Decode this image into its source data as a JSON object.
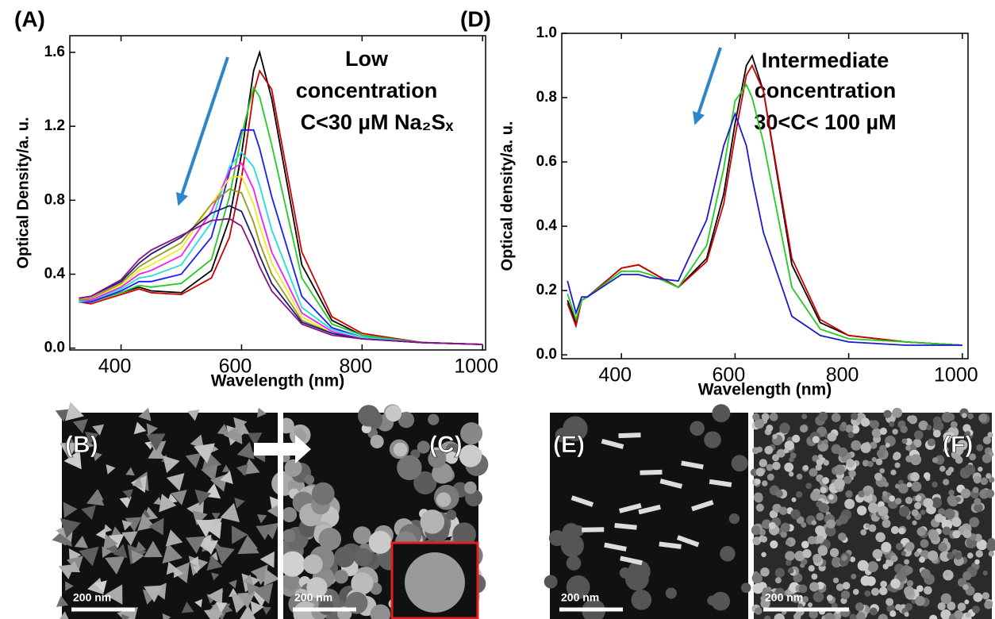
{
  "chart_data": [
    {
      "type": "line",
      "label": "(A)",
      "annotation": [
        "Low",
        "concentration",
        "C<30 µM  Na₂Sₓ"
      ],
      "xlabel": "Wavelength (nm)",
      "ylabel": "Optical Density/a. u.",
      "xlim": [
        315,
        1005
      ],
      "ylim": [
        -0.01,
        1.69
      ],
      "xticks": [
        400,
        600,
        800,
        1000
      ],
      "yticks": [
        {
          "value": 0,
          "label": "0.0"
        },
        0.4,
        0.8,
        1.2,
        1.6
      ],
      "x": [
        330,
        350,
        400,
        430,
        450,
        500,
        550,
        580,
        600,
        620,
        630,
        650,
        700,
        750,
        800,
        900,
        1000
      ],
      "series": [
        {
          "color": "#000000",
          "values": [
            0.26,
            0.25,
            0.3,
            0.33,
            0.31,
            0.3,
            0.42,
            0.7,
            1.05,
            1.5,
            1.6,
            1.35,
            0.45,
            0.15,
            0.07,
            0.03,
            0.02
          ]
        },
        {
          "color": "#cc0000",
          "values": [
            0.25,
            0.24,
            0.29,
            0.32,
            0.3,
            0.29,
            0.38,
            0.6,
            0.92,
            1.38,
            1.5,
            1.4,
            0.52,
            0.17,
            0.08,
            0.03,
            0.02
          ]
        },
        {
          "color": "#22cc22",
          "values": [
            0.25,
            0.25,
            0.3,
            0.34,
            0.33,
            0.35,
            0.48,
            0.82,
            1.15,
            1.41,
            1.36,
            1.1,
            0.38,
            0.13,
            0.07,
            0.03,
            0.02
          ]
        },
        {
          "color": "#1a1aff",
          "values": [
            0.25,
            0.25,
            0.31,
            0.36,
            0.36,
            0.4,
            0.6,
            0.95,
            1.18,
            1.18,
            1.08,
            0.82,
            0.28,
            0.11,
            0.06,
            0.03,
            0.02
          ]
        },
        {
          "color": "#22dddd",
          "values": [
            0.25,
            0.26,
            0.32,
            0.38,
            0.39,
            0.45,
            0.68,
            0.98,
            1.06,
            0.98,
            0.88,
            0.64,
            0.22,
            0.1,
            0.06,
            0.03,
            0.02
          ]
        },
        {
          "color": "#ee22ee",
          "values": [
            0.26,
            0.26,
            0.33,
            0.4,
            0.42,
            0.5,
            0.74,
            0.96,
            1.0,
            0.86,
            0.74,
            0.52,
            0.19,
            0.09,
            0.05,
            0.03,
            0.02
          ]
        },
        {
          "color": "#eeee22",
          "values": [
            0.26,
            0.27,
            0.34,
            0.42,
            0.45,
            0.54,
            0.78,
            0.92,
            0.93,
            0.78,
            0.66,
            0.46,
            0.17,
            0.08,
            0.05,
            0.03,
            0.02
          ]
        },
        {
          "color": "#999922",
          "values": [
            0.26,
            0.27,
            0.35,
            0.44,
            0.48,
            0.57,
            0.78,
            0.86,
            0.84,
            0.68,
            0.57,
            0.4,
            0.15,
            0.08,
            0.05,
            0.03,
            0.02
          ]
        },
        {
          "color": "#1a1a77",
          "values": [
            0.27,
            0.28,
            0.36,
            0.46,
            0.51,
            0.6,
            0.73,
            0.77,
            0.74,
            0.59,
            0.5,
            0.35,
            0.14,
            0.08,
            0.05,
            0.03,
            0.02
          ]
        },
        {
          "color": "#881188",
          "values": [
            0.27,
            0.28,
            0.37,
            0.48,
            0.53,
            0.61,
            0.69,
            0.7,
            0.66,
            0.52,
            0.44,
            0.31,
            0.13,
            0.07,
            0.05,
            0.03,
            0.02
          ]
        }
      ]
    },
    {
      "type": "line",
      "label": "(D)",
      "annotation": [
        "Intermediate",
        "concentration",
        "30<C< 100 µM"
      ],
      "xlabel": "Wavelength (nm)",
      "ylabel": "Optical density/a. u.",
      "xlim": [
        295,
        1010
      ],
      "ylim": [
        -0.012,
        1.0
      ],
      "xticks": [
        400,
        600,
        800,
        1000
      ],
      "yticks": [
        {
          "value": 0,
          "label": "0.0"
        },
        0.2,
        0.4,
        0.6,
        0.8,
        {
          "value": 1,
          "label": "1.0"
        }
      ],
      "x": [
        305,
        320,
        330,
        340,
        400,
        430,
        450,
        500,
        550,
        580,
        600,
        620,
        630,
        650,
        700,
        750,
        800,
        900,
        1000
      ],
      "series": [
        {
          "color": "#000000",
          "values": [
            0.17,
            0.1,
            0.17,
            0.18,
            0.27,
            0.28,
            0.26,
            0.21,
            0.3,
            0.5,
            0.72,
            0.9,
            0.93,
            0.82,
            0.28,
            0.1,
            0.06,
            0.04,
            0.03
          ]
        },
        {
          "color": "#cc0000",
          "values": [
            0.16,
            0.09,
            0.17,
            0.18,
            0.27,
            0.28,
            0.26,
            0.21,
            0.29,
            0.47,
            0.68,
            0.87,
            0.9,
            0.82,
            0.3,
            0.11,
            0.06,
            0.04,
            0.03
          ]
        },
        {
          "color": "#22cc22",
          "values": [
            0.19,
            0.11,
            0.17,
            0.18,
            0.26,
            0.26,
            0.25,
            0.21,
            0.34,
            0.58,
            0.79,
            0.84,
            0.8,
            0.66,
            0.21,
            0.08,
            0.05,
            0.04,
            0.03
          ]
        },
        {
          "color": "#1a1acc",
          "values": [
            0.23,
            0.13,
            0.18,
            0.18,
            0.25,
            0.25,
            0.24,
            0.23,
            0.42,
            0.65,
            0.75,
            0.65,
            0.55,
            0.38,
            0.12,
            0.06,
            0.04,
            0.03,
            0.03
          ]
        }
      ]
    }
  ],
  "images": [
    {
      "label": "(B)",
      "scale": "200 nm"
    },
    {
      "label": "(C)",
      "scale": "200 nm"
    },
    {
      "label": "(E)",
      "scale": "200 nm"
    },
    {
      "label": "(F)",
      "scale": "200 nm"
    }
  ]
}
